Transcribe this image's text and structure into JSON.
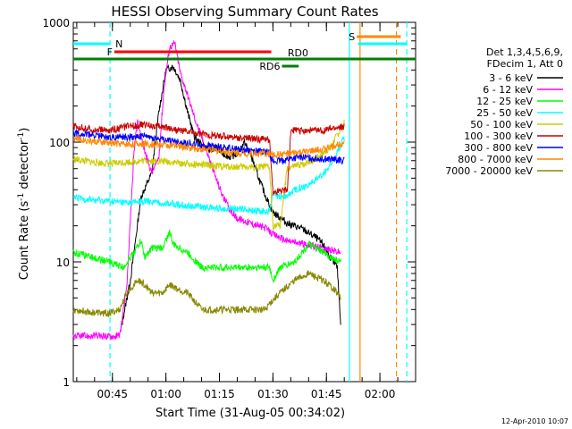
{
  "chart_data": {
    "type": "line",
    "title": "HESSI Observing Summary Count Rates",
    "xlabel": "Start Time (31-Aug-05 00:34:02)",
    "ylabel_pre": "Count Rate (s",
    "ylabel_sup": "-1",
    "ylabel_mid": " detector",
    "ylabel_end": ")",
    "x_axis": {
      "unit": "minutes from 00:34:02",
      "range": [
        0,
        95.97
      ]
    },
    "y_axis": {
      "scale": "log",
      "range": [
        1,
        1000
      ]
    },
    "x_ticks": [
      {
        "label": "00:45",
        "x": 10.97
      },
      {
        "label": "01:00",
        "x": 25.97
      },
      {
        "label": "01:15",
        "x": 40.97
      },
      {
        "label": "01:30",
        "x": 55.97
      },
      {
        "label": "01:45",
        "x": 70.97
      },
      {
        "label": "02:00",
        "x": 85.97
      }
    ],
    "y_ticks": [
      {
        "label": "1",
        "y": 1
      },
      {
        "label": "10",
        "y": 10
      },
      {
        "label": "100",
        "y": 100
      },
      {
        "label": "1000",
        "y": 1000
      }
    ],
    "legend": {
      "header": [
        "Det 1,3,4,5,6,9,",
        "FDecim 1, Att 0"
      ],
      "placement": "right"
    },
    "series": [
      {
        "name": "3 - 6 keV",
        "color": "#000000",
        "points": [
          [
            13.3,
            2.7
          ],
          [
            16,
            7
          ],
          [
            19,
            35
          ],
          [
            22,
            55
          ],
          [
            24,
            180
          ],
          [
            26,
            400
          ],
          [
            28,
            430
          ],
          [
            30,
            330
          ],
          [
            32,
            180
          ],
          [
            34,
            110
          ],
          [
            36,
            95
          ],
          [
            38,
            85
          ],
          [
            40,
            90
          ],
          [
            42,
            80
          ],
          [
            44,
            75
          ],
          [
            46,
            80
          ],
          [
            48,
            100
          ],
          [
            50,
            75
          ],
          [
            52,
            50
          ],
          [
            54,
            35
          ],
          [
            56,
            26
          ],
          [
            60,
            21
          ],
          [
            64,
            19
          ],
          [
            68,
            16
          ],
          [
            70,
            14
          ],
          [
            72,
            11
          ],
          [
            74,
            9
          ],
          [
            75,
            3
          ]
        ]
      },
      {
        "name": "6 - 12 keV",
        "color": "#ff00ff",
        "points": [
          [
            0,
            2.4
          ],
          [
            13,
            2.4
          ],
          [
            15,
            6
          ],
          [
            17,
            80
          ],
          [
            18,
            150
          ],
          [
            20,
            85
          ],
          [
            22,
            55
          ],
          [
            24,
            75
          ],
          [
            25.5,
            300
          ],
          [
            27,
            620
          ],
          [
            28.5,
            670
          ],
          [
            30,
            380
          ],
          [
            32,
            250
          ],
          [
            34,
            160
          ],
          [
            36,
            110
          ],
          [
            38,
            75
          ],
          [
            40,
            50
          ],
          [
            42,
            35
          ],
          [
            44,
            27
          ],
          [
            46,
            23
          ],
          [
            48,
            22
          ],
          [
            50,
            21
          ],
          [
            52,
            20
          ],
          [
            54,
            19
          ],
          [
            56,
            17
          ],
          [
            60,
            15
          ],
          [
            65,
            14
          ],
          [
            70,
            13
          ],
          [
            75,
            12
          ]
        ]
      },
      {
        "name": "12 - 25 keV",
        "color": "#00ff00",
        "points": [
          [
            0,
            12
          ],
          [
            5,
            11
          ],
          [
            10,
            10
          ],
          [
            14,
            9
          ],
          [
            17,
            12
          ],
          [
            19,
            15
          ],
          [
            20,
            11
          ],
          [
            22,
            13
          ],
          [
            25,
            13
          ],
          [
            27,
            18
          ],
          [
            28,
            14
          ],
          [
            32,
            12
          ],
          [
            36,
            9
          ],
          [
            40,
            9
          ],
          [
            44,
            9
          ],
          [
            48,
            9
          ],
          [
            52,
            9
          ],
          [
            55,
            9
          ],
          [
            56,
            7
          ],
          [
            58,
            9
          ],
          [
            62,
            10
          ],
          [
            66,
            14
          ],
          [
            70,
            12
          ],
          [
            72,
            11
          ],
          [
            75,
            10
          ]
        ]
      },
      {
        "name": "25 - 50 keV",
        "color": "#00ffff",
        "points": [
          [
            0,
            34
          ],
          [
            5,
            33
          ],
          [
            10,
            32
          ],
          [
            15,
            31
          ],
          [
            20,
            32
          ],
          [
            25,
            31
          ],
          [
            30,
            30
          ],
          [
            35,
            29
          ],
          [
            40,
            28
          ],
          [
            45,
            28
          ],
          [
            50,
            27
          ],
          [
            55,
            26
          ],
          [
            56,
            37
          ],
          [
            58,
            35
          ],
          [
            60,
            35
          ],
          [
            62,
            40
          ],
          [
            66,
            44
          ],
          [
            70,
            54
          ],
          [
            73,
            70
          ],
          [
            76,
            110
          ]
        ]
      },
      {
        "name": "50 - 100 keV",
        "color": "#cccc00",
        "points": [
          [
            0,
            72
          ],
          [
            5,
            68
          ],
          [
            10,
            66
          ],
          [
            15,
            68
          ],
          [
            20,
            70
          ],
          [
            25,
            69
          ],
          [
            30,
            67
          ],
          [
            35,
            65
          ],
          [
            40,
            63
          ],
          [
            45,
            62
          ],
          [
            50,
            62
          ],
          [
            55,
            62
          ],
          [
            56,
            20
          ],
          [
            58,
            20
          ],
          [
            60,
            60
          ],
          [
            64,
            65
          ],
          [
            68,
            72
          ],
          [
            72,
            90
          ],
          [
            76,
            145
          ]
        ]
      },
      {
        "name": "100 - 300 keV",
        "color": "#cc0000",
        "points": [
          [
            0,
            135
          ],
          [
            5,
            128
          ],
          [
            10,
            125
          ],
          [
            15,
            135
          ],
          [
            20,
            140
          ],
          [
            25,
            135
          ],
          [
            30,
            125
          ],
          [
            35,
            118
          ],
          [
            40,
            113
          ],
          [
            45,
            110
          ],
          [
            50,
            107
          ],
          [
            55,
            105
          ],
          [
            56,
            37
          ],
          [
            58,
            40
          ],
          [
            60,
            40
          ],
          [
            61,
            125
          ],
          [
            65,
            125
          ],
          [
            70,
            125
          ],
          [
            73,
            130
          ],
          [
            76,
            135
          ]
        ]
      },
      {
        "name": "300 - 800 keV",
        "color": "#0000ff",
        "points": [
          [
            0,
            120
          ],
          [
            5,
            115
          ],
          [
            10,
            110
          ],
          [
            15,
            110
          ],
          [
            20,
            112
          ],
          [
            25,
            105
          ],
          [
            30,
            100
          ],
          [
            35,
            95
          ],
          [
            40,
            92
          ],
          [
            45,
            88
          ],
          [
            50,
            85
          ],
          [
            55,
            82
          ],
          [
            56,
            68
          ],
          [
            60,
            72
          ],
          [
            64,
            75
          ],
          [
            68,
            73
          ],
          [
            72,
            72
          ],
          [
            76,
            70
          ]
        ]
      },
      {
        "name": "800 - 7000 keV",
        "color": "#ff8800",
        "points": [
          [
            0,
            108
          ],
          [
            5,
            102
          ],
          [
            10,
            98
          ],
          [
            15,
            96
          ],
          [
            20,
            97
          ],
          [
            25,
            95
          ],
          [
            30,
            92
          ],
          [
            35,
            88
          ],
          [
            40,
            85
          ],
          [
            45,
            82
          ],
          [
            50,
            80
          ],
          [
            55,
            80
          ],
          [
            56,
            78
          ],
          [
            60,
            80
          ],
          [
            64,
            82
          ],
          [
            68,
            85
          ],
          [
            72,
            90
          ],
          [
            76,
            100
          ]
        ]
      },
      {
        "name": "7000 - 20000 keV",
        "color": "#888800",
        "points": [
          [
            0,
            4
          ],
          [
            5,
            3.8
          ],
          [
            10,
            3.7
          ],
          [
            13,
            4
          ],
          [
            15,
            5.5
          ],
          [
            18,
            7
          ],
          [
            20,
            6.5
          ],
          [
            22,
            5.5
          ],
          [
            25,
            5.5
          ],
          [
            27,
            6.5
          ],
          [
            29,
            6
          ],
          [
            32,
            5.5
          ],
          [
            36,
            4
          ],
          [
            40,
            4
          ],
          [
            45,
            4
          ],
          [
            50,
            4
          ],
          [
            54,
            4
          ],
          [
            55,
            4.5
          ],
          [
            58,
            5.5
          ],
          [
            62,
            7
          ],
          [
            66,
            8
          ],
          [
            70,
            7
          ],
          [
            73,
            6
          ],
          [
            75,
            5
          ]
        ]
      }
    ],
    "flag_bars": [
      {
        "label": "N",
        "color": "#00ffff",
        "x0": 0,
        "x1": 10.3,
        "level": 1
      },
      {
        "label": "F",
        "color": "#ff0000",
        "x0": 11.5,
        "x1": 55.5,
        "level": 2
      },
      {
        "label": "RD0",
        "color": "#008000",
        "x0": 0,
        "x1": 95.97,
        "level": 3
      },
      {
        "label": "RD6",
        "color": "#008000",
        "x0": 58.5,
        "x1": 63.2,
        "level": 4
      },
      {
        "label": "S",
        "color": "#ff8800",
        "x0": 79.5,
        "x1": 91.8,
        "level": 0
      },
      {
        "label": "",
        "color": "#00ffff",
        "x0": 79.8,
        "x1": 93.5,
        "level": 1
      }
    ],
    "vlines": [
      {
        "x": 10.3,
        "color": "#00ffff",
        "dash": true
      },
      {
        "x": 77.4,
        "color": "#00ffff",
        "dash": false
      },
      {
        "x": 80.4,
        "color": "#ff8800",
        "dash": false
      },
      {
        "x": 90.6,
        "color": "#ff8800",
        "dash": true
      },
      {
        "x": 93.5,
        "color": "#00ffff",
        "dash": true
      }
    ],
    "timestamp": "12-Apr-2010 10:07"
  }
}
